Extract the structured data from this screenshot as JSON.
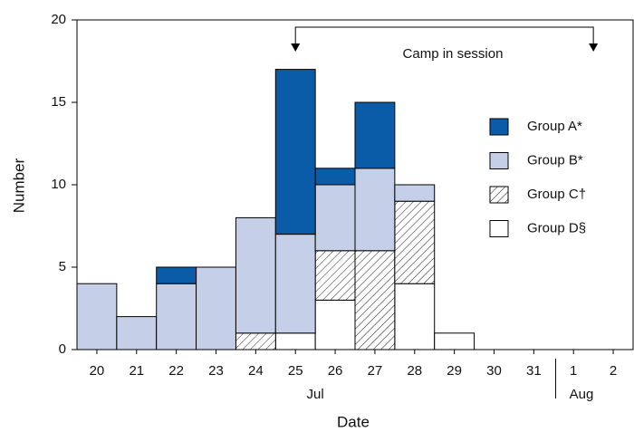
{
  "chart_data": {
    "type": "bar",
    "stacked": true,
    "x_label": "Date",
    "y_label": "Number",
    "categories": [
      "20",
      "21",
      "22",
      "23",
      "24",
      "25",
      "26",
      "27",
      "28",
      "29",
      "30",
      "31",
      "1",
      "2"
    ],
    "month_labels": [
      "Jul",
      "Aug"
    ],
    "annotation": "Camp in session",
    "series": [
      {
        "name": "Group D§",
        "color": "#ffffff",
        "hatch": false,
        "values": [
          0,
          0,
          0,
          0,
          0,
          1,
          3,
          0,
          4,
          1,
          0,
          0,
          0,
          0
        ]
      },
      {
        "name": "Group C†",
        "color": "#ffffff",
        "hatch": true,
        "values": [
          0,
          0,
          0,
          0,
          1,
          0,
          3,
          6,
          5,
          0,
          0,
          0,
          0,
          0
        ]
      },
      {
        "name": "Group B*",
        "color": "#c5cfe8",
        "hatch": false,
        "values": [
          4,
          2,
          4,
          5,
          7,
          6,
          4,
          5,
          1,
          0,
          0,
          0,
          0,
          0
        ]
      },
      {
        "name": "Group A*",
        "color": "#0a5ca8",
        "hatch": false,
        "values": [
          0,
          0,
          1,
          0,
          0,
          10,
          1,
          4,
          0,
          0,
          0,
          0,
          0,
          0
        ]
      }
    ],
    "ylim": [
      0,
      20
    ],
    "yticks": [
      0,
      5,
      10,
      15,
      20
    ],
    "grid": false
  }
}
